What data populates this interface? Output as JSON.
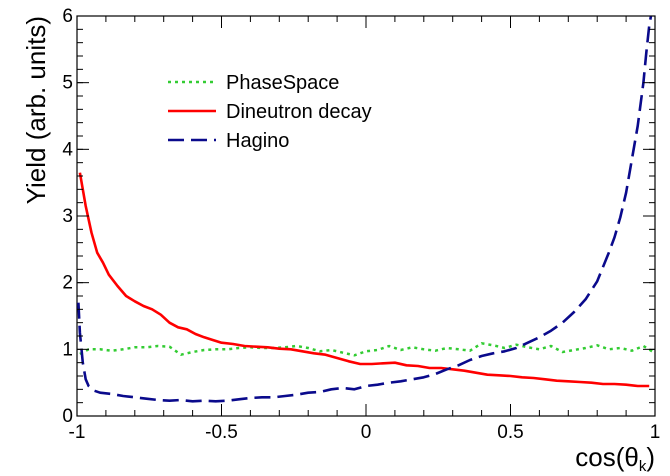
{
  "chart_data": {
    "type": "line",
    "title": "",
    "xlabel": "cos(θk)",
    "xlabel_parts": {
      "main": "cos(θ",
      "sub": "k",
      "close": ")"
    },
    "ylabel": "Yield (arb. units)",
    "xlim": [
      -1,
      1
    ],
    "ylim": [
      0,
      6
    ],
    "x_major_ticks": [
      -1,
      -0.5,
      0,
      0.5,
      1
    ],
    "x_tick_labels": [
      "-1",
      "-0.5",
      "0",
      "0.5",
      "1"
    ],
    "y_major_ticks": [
      0,
      1,
      2,
      3,
      4,
      5,
      6
    ],
    "y_tick_labels": [
      "0",
      "1",
      "2",
      "3",
      "4",
      "5",
      "6"
    ],
    "grid": false,
    "legend_position": "top-center",
    "series": [
      {
        "name": "PhaseSpace",
        "color": "#33cc33",
        "style": "dotted",
        "x": [
          -0.99,
          -0.96,
          -0.92,
          -0.88,
          -0.84,
          -0.8,
          -0.76,
          -0.72,
          -0.68,
          -0.64,
          -0.6,
          -0.56,
          -0.52,
          -0.48,
          -0.44,
          -0.4,
          -0.36,
          -0.32,
          -0.28,
          -0.24,
          -0.2,
          -0.16,
          -0.12,
          -0.08,
          -0.04,
          0.0,
          0.04,
          0.08,
          0.12,
          0.16,
          0.2,
          0.24,
          0.28,
          0.32,
          0.36,
          0.4,
          0.44,
          0.48,
          0.52,
          0.56,
          0.6,
          0.64,
          0.68,
          0.72,
          0.76,
          0.8,
          0.84,
          0.88,
          0.92,
          0.96,
          0.99
        ],
        "y": [
          0.93,
          1.0,
          1.0,
          0.98,
          1.0,
          1.03,
          1.03,
          1.05,
          1.04,
          0.92,
          0.96,
          0.99,
          1.0,
          1.0,
          1.02,
          1.03,
          1.02,
          1.02,
          1.03,
          1.05,
          1.02,
          0.97,
          0.99,
          0.95,
          0.91,
          0.97,
          0.99,
          1.05,
          0.99,
          1.03,
          1.0,
          0.98,
          1.02,
          1.0,
          0.98,
          1.09,
          1.06,
          1.02,
          1.07,
          1.03,
          1.0,
          1.05,
          0.96,
          0.99,
          1.02,
          1.06,
          1.0,
          1.02,
          0.98,
          1.05,
          0.97
        ]
      },
      {
        "name": "Dineutron decay",
        "color": "#ff0000",
        "style": "solid",
        "x": [
          -0.99,
          -0.97,
          -0.95,
          -0.93,
          -0.91,
          -0.89,
          -0.86,
          -0.83,
          -0.8,
          -0.77,
          -0.74,
          -0.71,
          -0.68,
          -0.65,
          -0.62,
          -0.59,
          -0.56,
          -0.53,
          -0.5,
          -0.46,
          -0.42,
          -0.38,
          -0.34,
          -0.3,
          -0.26,
          -0.22,
          -0.18,
          -0.14,
          -0.1,
          -0.06,
          -0.02,
          0.02,
          0.06,
          0.1,
          0.14,
          0.18,
          0.22,
          0.26,
          0.3,
          0.34,
          0.38,
          0.42,
          0.46,
          0.5,
          0.54,
          0.58,
          0.62,
          0.66,
          0.7,
          0.74,
          0.78,
          0.82,
          0.86,
          0.9,
          0.94,
          0.98
        ],
        "y": [
          3.65,
          3.15,
          2.75,
          2.45,
          2.3,
          2.12,
          1.95,
          1.8,
          1.72,
          1.65,
          1.6,
          1.52,
          1.4,
          1.33,
          1.3,
          1.23,
          1.18,
          1.14,
          1.1,
          1.08,
          1.05,
          1.04,
          1.03,
          1.01,
          1.0,
          0.97,
          0.94,
          0.92,
          0.87,
          0.82,
          0.78,
          0.78,
          0.79,
          0.8,
          0.76,
          0.75,
          0.72,
          0.72,
          0.7,
          0.68,
          0.65,
          0.62,
          0.61,
          0.6,
          0.58,
          0.57,
          0.55,
          0.53,
          0.52,
          0.51,
          0.5,
          0.48,
          0.48,
          0.47,
          0.45,
          0.45
        ]
      },
      {
        "name": "Hagino",
        "color": "#0a0a8c",
        "style": "dashed",
        "x": [
          -0.995,
          -0.99,
          -0.98,
          -0.97,
          -0.96,
          -0.94,
          -0.92,
          -0.88,
          -0.84,
          -0.8,
          -0.76,
          -0.72,
          -0.68,
          -0.64,
          -0.6,
          -0.56,
          -0.52,
          -0.48,
          -0.44,
          -0.4,
          -0.36,
          -0.32,
          -0.28,
          -0.24,
          -0.2,
          -0.16,
          -0.12,
          -0.08,
          -0.04,
          0.0,
          0.04,
          0.08,
          0.12,
          0.16,
          0.2,
          0.24,
          0.28,
          0.32,
          0.36,
          0.4,
          0.44,
          0.48,
          0.52,
          0.56,
          0.6,
          0.64,
          0.68,
          0.72,
          0.76,
          0.8,
          0.84,
          0.86,
          0.88,
          0.9,
          0.92,
          0.94,
          0.96,
          0.97,
          0.98,
          0.99
        ],
        "y": [
          1.7,
          1.25,
          0.8,
          0.55,
          0.45,
          0.38,
          0.35,
          0.33,
          0.3,
          0.28,
          0.26,
          0.24,
          0.23,
          0.24,
          0.22,
          0.23,
          0.22,
          0.23,
          0.25,
          0.27,
          0.28,
          0.28,
          0.3,
          0.32,
          0.35,
          0.36,
          0.4,
          0.42,
          0.4,
          0.45,
          0.47,
          0.5,
          0.52,
          0.55,
          0.58,
          0.63,
          0.7,
          0.76,
          0.84,
          0.9,
          0.94,
          0.97,
          1.02,
          1.1,
          1.18,
          1.28,
          1.4,
          1.56,
          1.75,
          2.02,
          2.45,
          2.68,
          2.98,
          3.35,
          3.85,
          4.35,
          5.0,
          5.45,
          5.85,
          6.1
        ]
      }
    ]
  }
}
